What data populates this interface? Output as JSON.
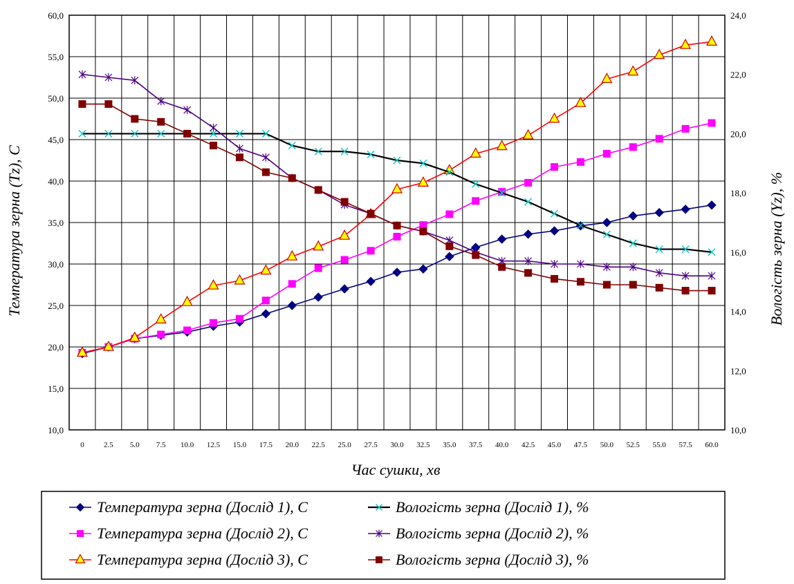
{
  "chart_data": {
    "type": "line",
    "xlabel": "Час сушки, хв",
    "ylabel": "Температура зерна (Tz), С",
    "y2label": "Вологість зерна (Yz), %",
    "x_categories": [
      "0",
      "2.5",
      "5.0",
      "7.5",
      "10.0",
      "12.5",
      "15.0",
      "17.5",
      "20.0",
      "22.5",
      "25.0",
      "27.5",
      "30.0",
      "32.5",
      "35.0",
      "37.5",
      "40.0",
      "42.5",
      "45.0",
      "47.5",
      "50.0",
      "52.5",
      "55.0",
      "57.5",
      "60.0"
    ],
    "y_ticks": [
      "10,0",
      "15,0",
      "20,0",
      "25,0",
      "30,0",
      "35,0",
      "40,0",
      "45,0",
      "50,0",
      "55,0",
      "60,0"
    ],
    "y2_ticks": [
      "10,0",
      "12,0",
      "14,0",
      "16,0",
      "18,0",
      "20,0",
      "22,0",
      "24,0"
    ],
    "ylim": [
      10,
      60
    ],
    "y2lim": [
      10,
      24
    ],
    "grid": true,
    "legend_position": "bottom",
    "series": [
      {
        "name": "Температура зерна (Дослід 1), С",
        "axis": "left",
        "color": "#000080",
        "marker": "diamond",
        "values": [
          19.2,
          20.0,
          21.0,
          21.4,
          21.8,
          22.5,
          23.0,
          24.0,
          25.0,
          26.0,
          27.0,
          27.9,
          29.0,
          29.4,
          30.9,
          32.0,
          33.0,
          33.6,
          34.0,
          34.6,
          35.0,
          35.8,
          36.2,
          36.6,
          37.1
        ]
      },
      {
        "name": "Температура зерна (Дослід 2), С",
        "axis": "left",
        "color": "#ff00ff",
        "marker": "square",
        "values": [
          19.3,
          20.0,
          21.0,
          21.5,
          22.0,
          22.9,
          23.4,
          25.6,
          27.6,
          29.5,
          30.5,
          31.6,
          33.3,
          34.7,
          36.0,
          37.6,
          38.7,
          39.8,
          41.7,
          42.3,
          43.3,
          44.1,
          45.1,
          46.3,
          47.0
        ]
      },
      {
        "name": "Температура зерна (Дослід 3), С",
        "axis": "left",
        "color": "#ff0000",
        "marker": "triangle",
        "values": [
          19.3,
          20.0,
          21.1,
          23.3,
          25.4,
          27.4,
          28.0,
          29.2,
          30.9,
          32.1,
          33.4,
          36.0,
          39.0,
          39.8,
          41.3,
          43.3,
          44.2,
          45.5,
          47.5,
          49.4,
          52.3,
          53.2,
          55.2,
          56.4,
          56.8
        ]
      },
      {
        "name": "Вологість зерна (Дослід 1), %",
        "axis": "right",
        "color": "#000000",
        "marker": "x",
        "values": [
          20.0,
          20.0,
          20.0,
          20.0,
          20.0,
          20.0,
          20.0,
          20.0,
          19.6,
          19.4,
          19.4,
          19.3,
          19.1,
          19.0,
          18.7,
          18.3,
          18.0,
          17.7,
          17.3,
          16.9,
          16.6,
          16.3,
          16.1,
          16.1,
          16.0
        ]
      },
      {
        "name": "Вологість зерна (Дослід 2), %",
        "axis": "right",
        "color": "#4b0082",
        "marker": "star",
        "values": [
          22.0,
          21.9,
          21.8,
          21.1,
          20.8,
          20.2,
          19.5,
          19.2,
          18.5,
          18.1,
          17.6,
          17.3,
          16.9,
          16.7,
          16.4,
          16.0,
          15.7,
          15.7,
          15.6,
          15.6,
          15.5,
          15.5,
          15.3,
          15.2,
          15.2
        ]
      },
      {
        "name": "Вологість зерна (Дослід 3), %",
        "axis": "right",
        "color": "#800000",
        "marker": "square",
        "values": [
          21.0,
          21.0,
          20.5,
          20.4,
          20.0,
          19.6,
          19.2,
          18.7,
          18.5,
          18.1,
          17.7,
          17.3,
          16.9,
          16.7,
          16.2,
          15.9,
          15.5,
          15.3,
          15.1,
          15.0,
          14.9,
          14.9,
          14.8,
          14.7,
          14.7
        ]
      }
    ]
  }
}
